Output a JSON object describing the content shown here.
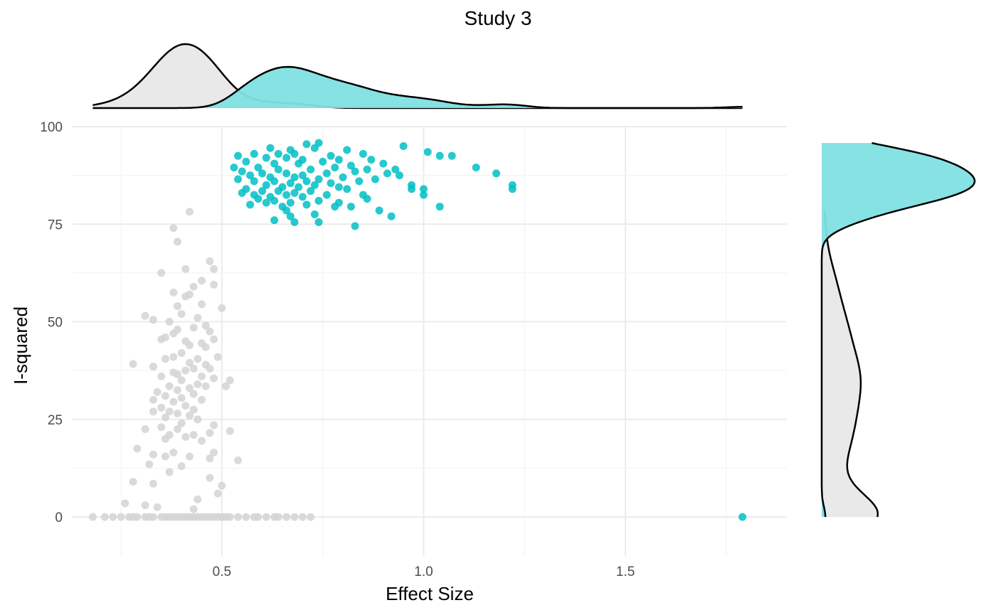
{
  "chart_data": {
    "type": "scatter",
    "title": "Study  3",
    "xlabel": "Effect Size",
    "ylabel": "I-squared",
    "xlim": [
      0.13,
      1.9
    ],
    "ylim": [
      -10,
      100
    ],
    "x_ticks": [
      0.5,
      1.0,
      1.5
    ],
    "x_tick_labels": [
      "0.5",
      "1.0",
      "1.5"
    ],
    "y_ticks": [
      0,
      25,
      50,
      75,
      100
    ],
    "y_tick_labels": [
      "0",
      "25",
      "50",
      "75",
      "100"
    ],
    "grid": true,
    "marginal_densities": true,
    "series": [
      {
        "color": "#d3d3d3",
        "fill": "#e8e8e8",
        "points": [
          [
            0.42,
            78.2
          ],
          [
            0.38,
            74.0
          ],
          [
            0.39,
            70.5
          ],
          [
            0.47,
            65.5
          ],
          [
            0.41,
            63.5
          ],
          [
            0.48,
            63.5
          ],
          [
            0.35,
            62.5
          ],
          [
            0.45,
            60.5
          ],
          [
            0.43,
            59.0
          ],
          [
            0.48,
            59.5
          ],
          [
            0.38,
            57.5
          ],
          [
            0.42,
            57.0
          ],
          [
            0.41,
            56.5
          ],
          [
            0.39,
            54.0
          ],
          [
            0.45,
            54.5
          ],
          [
            0.5,
            53.5
          ],
          [
            0.31,
            51.5
          ],
          [
            0.33,
            50.5
          ],
          [
            0.4,
            52.0
          ],
          [
            0.44,
            51.0
          ],
          [
            0.37,
            50.0
          ],
          [
            0.46,
            49.0
          ],
          [
            0.39,
            48.0
          ],
          [
            0.43,
            48.5
          ],
          [
            0.47,
            47.5
          ],
          [
            0.38,
            47.0
          ],
          [
            0.35,
            45.5
          ],
          [
            0.41,
            45.0
          ],
          [
            0.36,
            46.0
          ],
          [
            0.45,
            44.5
          ],
          [
            0.48,
            45.5
          ],
          [
            0.42,
            44.0
          ],
          [
            0.46,
            43.5
          ],
          [
            0.4,
            42.0
          ],
          [
            0.38,
            41.0
          ],
          [
            0.44,
            40.5
          ],
          [
            0.49,
            41.0
          ],
          [
            0.36,
            40.5
          ],
          [
            0.42,
            39.5
          ],
          [
            0.46,
            39.0
          ],
          [
            0.28,
            39.2
          ],
          [
            0.33,
            38.5
          ],
          [
            0.43,
            38.0
          ],
          [
            0.41,
            37.5
          ],
          [
            0.38,
            37.0
          ],
          [
            0.47,
            38.0
          ],
          [
            0.35,
            36.0
          ],
          [
            0.39,
            36.5
          ],
          [
            0.45,
            36.0
          ],
          [
            0.4,
            35.0
          ],
          [
            0.48,
            35.5
          ],
          [
            0.52,
            35.0
          ],
          [
            0.44,
            34.0
          ],
          [
            0.37,
            33.5
          ],
          [
            0.42,
            33.0
          ],
          [
            0.46,
            33.5
          ],
          [
            0.51,
            33.5
          ],
          [
            0.34,
            32.0
          ],
          [
            0.39,
            32.5
          ],
          [
            0.43,
            31.5
          ],
          [
            0.36,
            31.0
          ],
          [
            0.4,
            30.5
          ],
          [
            0.33,
            30.0
          ],
          [
            0.45,
            30.0
          ],
          [
            0.38,
            29.5
          ],
          [
            0.41,
            28.5
          ],
          [
            0.35,
            28.0
          ],
          [
            0.43,
            27.5
          ],
          [
            0.37,
            27.0
          ],
          [
            0.39,
            26.5
          ],
          [
            0.33,
            27.0
          ],
          [
            0.42,
            26.0
          ],
          [
            0.36,
            25.5
          ],
          [
            0.44,
            25.0
          ],
          [
            0.4,
            24.0
          ],
          [
            0.48,
            23.5
          ],
          [
            0.31,
            22.5
          ],
          [
            0.35,
            23.0
          ],
          [
            0.39,
            22.5
          ],
          [
            0.43,
            21.0
          ],
          [
            0.47,
            21.5
          ],
          [
            0.52,
            22.0
          ],
          [
            0.37,
            21.0
          ],
          [
            0.41,
            20.5
          ],
          [
            0.36,
            20.0
          ],
          [
            0.45,
            19.5
          ],
          [
            0.29,
            17.5
          ],
          [
            0.33,
            16.0
          ],
          [
            0.38,
            16.5
          ],
          [
            0.42,
            15.5
          ],
          [
            0.47,
            15.0
          ],
          [
            0.48,
            16.5
          ],
          [
            0.54,
            14.5
          ],
          [
            0.36,
            15.5
          ],
          [
            0.32,
            13.5
          ],
          [
            0.4,
            13.0
          ],
          [
            0.37,
            11.5
          ],
          [
            0.28,
            9.0
          ],
          [
            0.33,
            8.5
          ],
          [
            0.47,
            10.0
          ],
          [
            0.5,
            8.0
          ],
          [
            0.49,
            6.0
          ],
          [
            0.44,
            4.5
          ],
          [
            0.26,
            3.5
          ],
          [
            0.31,
            3.0
          ],
          [
            0.34,
            2.5
          ],
          [
            0.43,
            2.0
          ],
          [
            0.18,
            0
          ],
          [
            0.21,
            0
          ],
          [
            0.23,
            0
          ],
          [
            0.25,
            0
          ],
          [
            0.27,
            0
          ],
          [
            0.28,
            0
          ],
          [
            0.29,
            0
          ],
          [
            0.31,
            0
          ],
          [
            0.32,
            0
          ],
          [
            0.33,
            0
          ],
          [
            0.35,
            0
          ],
          [
            0.36,
            0
          ],
          [
            0.37,
            0
          ],
          [
            0.38,
            0
          ],
          [
            0.39,
            0
          ],
          [
            0.4,
            0
          ],
          [
            0.41,
            0
          ],
          [
            0.42,
            0
          ],
          [
            0.43,
            0
          ],
          [
            0.44,
            0
          ],
          [
            0.45,
            0
          ],
          [
            0.46,
            0
          ],
          [
            0.47,
            0
          ],
          [
            0.48,
            0
          ],
          [
            0.49,
            0
          ],
          [
            0.5,
            0
          ],
          [
            0.51,
            0
          ],
          [
            0.52,
            0
          ],
          [
            0.54,
            0
          ],
          [
            0.56,
            0
          ],
          [
            0.58,
            0
          ],
          [
            0.59,
            0
          ],
          [
            0.61,
            0
          ],
          [
            0.63,
            0
          ],
          [
            0.64,
            0
          ],
          [
            0.66,
            0
          ],
          [
            0.68,
            0
          ],
          [
            0.7,
            0
          ],
          [
            0.72,
            0
          ]
        ]
      },
      {
        "color": "#00bfc4",
        "fill": "#80e0e2",
        "points": [
          [
            0.71,
            95.5
          ],
          [
            0.74,
            95.8
          ],
          [
            0.62,
            94.5
          ],
          [
            0.67,
            94.0
          ],
          [
            0.73,
            94.5
          ],
          [
            0.95,
            95.0
          ],
          [
            0.81,
            94.0
          ],
          [
            1.01,
            93.5
          ],
          [
            0.58,
            93.0
          ],
          [
            0.64,
            93.0
          ],
          [
            0.68,
            93.0
          ],
          [
            0.77,
            92.5
          ],
          [
            0.85,
            93.0
          ],
          [
            1.04,
            92.5
          ],
          [
            1.07,
            92.5
          ],
          [
            0.54,
            92.5
          ],
          [
            0.61,
            92.0
          ],
          [
            0.66,
            92.0
          ],
          [
            0.7,
            91.5
          ],
          [
            0.79,
            91.5
          ],
          [
            0.87,
            91.5
          ],
          [
            0.56,
            91.0
          ],
          [
            0.63,
            90.5
          ],
          [
            0.69,
            90.5
          ],
          [
            0.75,
            91.0
          ],
          [
            0.82,
            90.0
          ],
          [
            0.9,
            90.5
          ],
          [
            0.53,
            89.5
          ],
          [
            0.59,
            89.5
          ],
          [
            0.64,
            89.0
          ],
          [
            0.72,
            89.0
          ],
          [
            0.78,
            89.5
          ],
          [
            0.86,
            89.0
          ],
          [
            0.93,
            89.0
          ],
          [
            1.13,
            89.5
          ],
          [
            0.55,
            88.5
          ],
          [
            0.6,
            88.0
          ],
          [
            0.66,
            88.0
          ],
          [
            0.7,
            87.5
          ],
          [
            0.76,
            88.0
          ],
          [
            0.83,
            88.5
          ],
          [
            0.91,
            88.0
          ],
          [
            1.18,
            88.0
          ],
          [
            0.57,
            87.5
          ],
          [
            0.62,
            87.0
          ],
          [
            0.68,
            87.0
          ],
          [
            0.74,
            86.5
          ],
          [
            0.8,
            87.0
          ],
          [
            0.88,
            86.5
          ],
          [
            0.94,
            87.5
          ],
          [
            0.54,
            86.5
          ],
          [
            0.58,
            86.0
          ],
          [
            0.63,
            86.0
          ],
          [
            0.67,
            85.5
          ],
          [
            0.71,
            86.0
          ],
          [
            0.77,
            85.5
          ],
          [
            0.84,
            86.0
          ],
          [
            0.61,
            85.0
          ],
          [
            0.65,
            84.5
          ],
          [
            0.69,
            84.5
          ],
          [
            0.73,
            85.0
          ],
          [
            0.79,
            84.5
          ],
          [
            0.97,
            85.0
          ],
          [
            1.22,
            85.0
          ],
          [
            0.56,
            84.0
          ],
          [
            0.6,
            83.5
          ],
          [
            0.64,
            83.5
          ],
          [
            0.68,
            83.0
          ],
          [
            0.72,
            83.5
          ],
          [
            0.81,
            84.0
          ],
          [
            0.97,
            84.0
          ],
          [
            1.0,
            84.0
          ],
          [
            1.22,
            84.0
          ],
          [
            0.55,
            83.0
          ],
          [
            0.58,
            82.5
          ],
          [
            0.62,
            82.0
          ],
          [
            0.66,
            82.5
          ],
          [
            0.7,
            82.0
          ],
          [
            0.76,
            82.5
          ],
          [
            0.85,
            82.5
          ],
          [
            1.0,
            82.5
          ],
          [
            0.59,
            81.5
          ],
          [
            0.63,
            81.0
          ],
          [
            0.67,
            80.5
          ],
          [
            0.74,
            81.0
          ],
          [
            0.79,
            80.5
          ],
          [
            0.86,
            81.5
          ],
          [
            0.57,
            80.0
          ],
          [
            0.61,
            80.5
          ],
          [
            0.65,
            79.5
          ],
          [
            0.71,
            80.0
          ],
          [
            0.78,
            79.5
          ],
          [
            0.82,
            79.5
          ],
          [
            1.04,
            79.5
          ],
          [
            0.89,
            78.5
          ],
          [
            0.66,
            78.5
          ],
          [
            0.73,
            77.5
          ],
          [
            0.67,
            77.0
          ],
          [
            0.92,
            77.0
          ],
          [
            0.63,
            76.0
          ],
          [
            0.68,
            75.5
          ],
          [
            0.74,
            75.5
          ],
          [
            0.83,
            74.5
          ],
          [
            1.79,
            0
          ]
        ]
      }
    ]
  }
}
